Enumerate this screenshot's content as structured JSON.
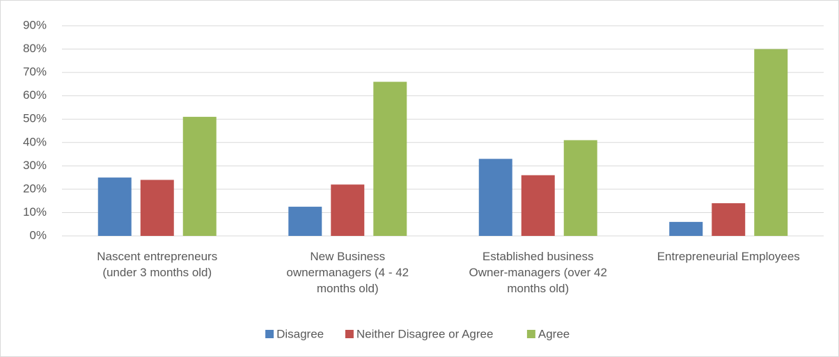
{
  "chart_data": {
    "type": "bar",
    "categories": [
      "Nascent entrepreneurs (under 3 months old)",
      "New Business ownermanagers (4 - 42 months old)",
      "Established business Owner-managers (over 42 months old)",
      "Entrepreneurial Employees"
    ],
    "series": [
      {
        "name": "Disagree",
        "color": "#4f81bd",
        "values": [
          25,
          12.5,
          33,
          6
        ]
      },
      {
        "name": "Neither Disagree or Agree",
        "color": "#c0504d",
        "values": [
          24,
          22,
          26,
          14
        ]
      },
      {
        "name": "Agree",
        "color": "#9bbb59",
        "values": [
          51,
          66,
          41,
          80
        ]
      }
    ],
    "ylim": [
      0,
      90
    ],
    "yticks": [
      {
        "value": 0,
        "label": "0%"
      },
      {
        "value": 10,
        "label": "10%"
      },
      {
        "value": 20,
        "label": "20%"
      },
      {
        "value": 30,
        "label": "30%"
      },
      {
        "value": 40,
        "label": "40%"
      },
      {
        "value": 50,
        "label": "50%"
      },
      {
        "value": 60,
        "label": "60%"
      },
      {
        "value": 70,
        "label": "70%"
      },
      {
        "value": 80,
        "label": "80%"
      },
      {
        "value": 90,
        "label": "90%"
      }
    ],
    "grid": true,
    "legend": "bottom"
  }
}
